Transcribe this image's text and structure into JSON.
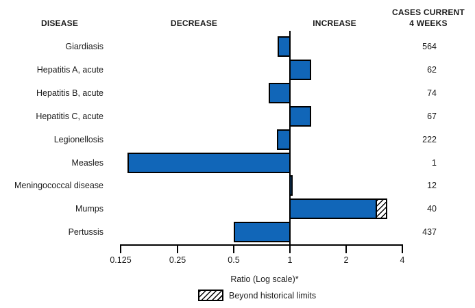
{
  "header": {
    "disease": "DISEASE",
    "decrease": "DECREASE",
    "increase": "INCREASE",
    "cases_line1": "CASES CURRENT",
    "cases_line2": "4 WEEKS"
  },
  "axis": {
    "label": "Ratio (Log scale)*",
    "ticks": [
      "0.125",
      "0.25",
      "0.5",
      "1",
      "2",
      "4"
    ]
  },
  "legend": {
    "label": "Beyond historical limits"
  },
  "colors": {
    "bar_fill": "#1166B8",
    "bar_border": "#000000",
    "hatch": "#000000",
    "background": "#ffffff"
  },
  "chart_data": {
    "type": "bar",
    "orientation": "horizontal",
    "scale": "log2",
    "xlabel": "Ratio (Log scale)*",
    "xlim": [
      0.125,
      4
    ],
    "ticks": [
      0.125,
      0.25,
      0.5,
      1,
      2,
      4
    ],
    "baseline": 1,
    "legend": "Beyond historical limits",
    "rows": [
      {
        "disease": "Giardiasis",
        "ratio": 0.86,
        "cases": 564,
        "beyond_limits": false
      },
      {
        "disease": "Hepatitis A, acute",
        "ratio": 1.3,
        "cases": 62,
        "beyond_limits": false
      },
      {
        "disease": "Hepatitis B, acute",
        "ratio": 0.77,
        "cases": 74,
        "beyond_limits": false
      },
      {
        "disease": "Hepatitis C, acute",
        "ratio": 1.3,
        "cases": 67,
        "beyond_limits": false
      },
      {
        "disease": "Legionellosis",
        "ratio": 0.85,
        "cases": 222,
        "beyond_limits": false
      },
      {
        "disease": "Measles",
        "ratio": 0.135,
        "cases": 1,
        "beyond_limits": false
      },
      {
        "disease": "Meningococcal disease",
        "ratio": 1.03,
        "cases": 12,
        "beyond_limits": false
      },
      {
        "disease": "Mumps",
        "ratio": 3.3,
        "cases": 40,
        "beyond_limits": true,
        "historical_limit": 2.9
      },
      {
        "disease": "Pertussis",
        "ratio": 0.5,
        "cases": 437,
        "beyond_limits": false
      }
    ]
  }
}
